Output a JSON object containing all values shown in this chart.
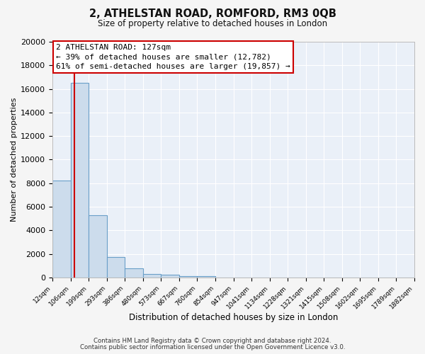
{
  "title": "2, ATHELSTAN ROAD, ROMFORD, RM3 0QB",
  "subtitle": "Size of property relative to detached houses in London",
  "xlabel": "Distribution of detached houses by size in London",
  "ylabel": "Number of detached properties",
  "bin_labels": [
    "12sqm",
    "106sqm",
    "199sqm",
    "293sqm",
    "386sqm",
    "480sqm",
    "573sqm",
    "667sqm",
    "760sqm",
    "854sqm",
    "947sqm",
    "1041sqm",
    "1134sqm",
    "1228sqm",
    "1321sqm",
    "1415sqm",
    "1508sqm",
    "1602sqm",
    "1695sqm",
    "1789sqm",
    "1882sqm"
  ],
  "bar_heights": [
    8200,
    16500,
    5300,
    1750,
    800,
    300,
    220,
    130,
    100,
    0,
    0,
    0,
    0,
    0,
    0,
    0,
    0,
    0,
    0,
    0
  ],
  "bar_color": "#ccdcec",
  "bar_edge_color": "#6a9fc8",
  "ylim": [
    0,
    20000
  ],
  "yticks": [
    0,
    2000,
    4000,
    6000,
    8000,
    10000,
    12000,
    14000,
    16000,
    18000,
    20000
  ],
  "annotation_title": "2 ATHELSTAN ROAD: 127sqm",
  "annotation_line1": "← 39% of detached houses are smaller (12,782)",
  "annotation_line2": "61% of semi-detached houses are larger (19,857) →",
  "footer1": "Contains HM Land Registry data © Crown copyright and database right 2024.",
  "footer2": "Contains public sector information licensed under the Open Government Licence v3.0.",
  "background_color": "#f5f5f5",
  "plot_bg_color": "#eaf0f8",
  "grid_color": "#ffffff",
  "annotation_box_color": "#ffffff",
  "annotation_box_edge": "#cc0000",
  "red_line_color": "#cc0000",
  "property_sqm": 127,
  "bin_edges": [
    12,
    106,
    199,
    293,
    386,
    480,
    573,
    667,
    760,
    854,
    947,
    1041,
    1134,
    1228,
    1321,
    1415,
    1508,
    1602,
    1695,
    1789,
    1882
  ]
}
